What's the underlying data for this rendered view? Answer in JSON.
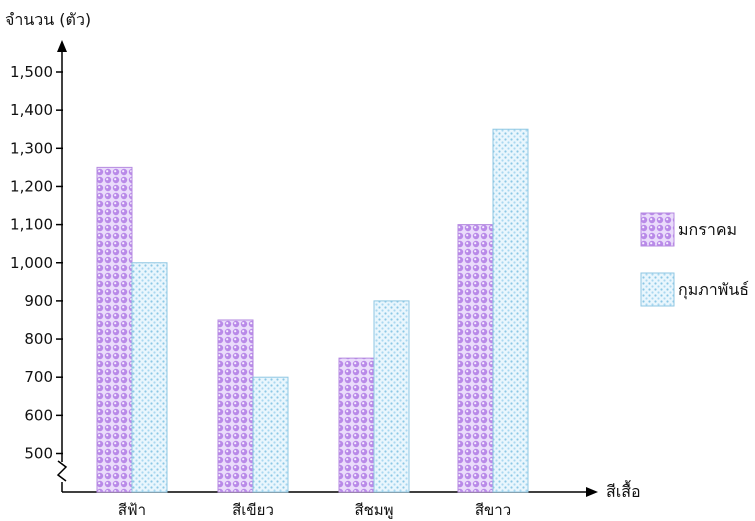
{
  "chart_data": {
    "type": "bar",
    "title": "",
    "ylabel": "จำนวน (ตัว)",
    "xlabel": "สีเสื้อ",
    "categories": [
      "สีฟ้า",
      "สีเขียว",
      "สีชมพู",
      "สีขาว"
    ],
    "series": [
      {
        "name": "มกราคม",
        "values": [
          1250,
          850,
          750,
          1100
        ],
        "color": "#c9a3f2",
        "pattern": "circles"
      },
      {
        "name": "กุมภาพันธ์",
        "values": [
          1000,
          700,
          900,
          1350
        ],
        "color": "#9fd6ee",
        "pattern": "dots"
      }
    ],
    "ylim": [
      450,
      1550
    ],
    "yticks": [
      500,
      600,
      700,
      800,
      900,
      1000,
      1100,
      1200,
      1300,
      1400,
      1500
    ],
    "ytick_labels": [
      "500",
      "600",
      "700",
      "800",
      "900",
      "1,000",
      "1,100",
      "1,200",
      "1,300",
      "1,400",
      "1,500"
    ],
    "axis_break": true,
    "legend_position": "right",
    "grid": false
  }
}
